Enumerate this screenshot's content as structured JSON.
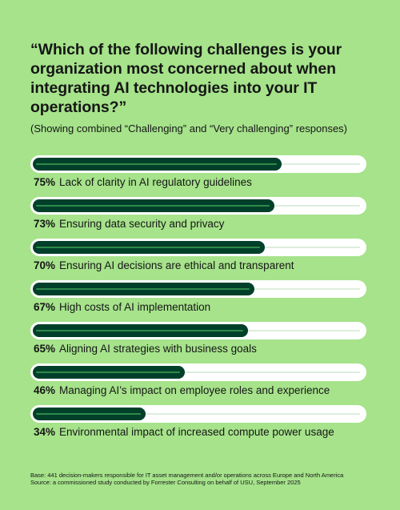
{
  "header": {
    "question": "“Which of the following challenges is your organization most concerned about when integrating AI technologies into your IT operations?”",
    "subtitle": "(Showing combined “Challenging” and “Very challenging” responses)"
  },
  "chart_data": {
    "type": "bar",
    "orientation": "horizontal",
    "xlim": [
      0,
      100
    ],
    "categories": [
      "Lack of clarity in AI regulatory guidelines",
      "Ensuring data security and privacy",
      "Ensuring AI decisions are ethical and transparent",
      "High costs of AI implementation",
      "Aligning AI strategies with business goals",
      "Managing AI’s impact on employee roles and experience",
      "Environmental impact of increased compute power usage"
    ],
    "values": [
      75,
      73,
      70,
      67,
      65,
      46,
      34
    ],
    "value_labels": [
      "75%",
      "73%",
      "70%",
      "67%",
      "65%",
      "46%",
      "34%"
    ],
    "colors": {
      "fill": "#00402a",
      "track": "#ffffff",
      "background": "#a6e38b"
    }
  },
  "footer": {
    "base": "Base: 441 decision-makers responsible for IT asset management and/or operations across Europe and North America",
    "source": "Source: a commissioned study conducted by Forrester Consulting on behalf of USU, September 2025"
  }
}
